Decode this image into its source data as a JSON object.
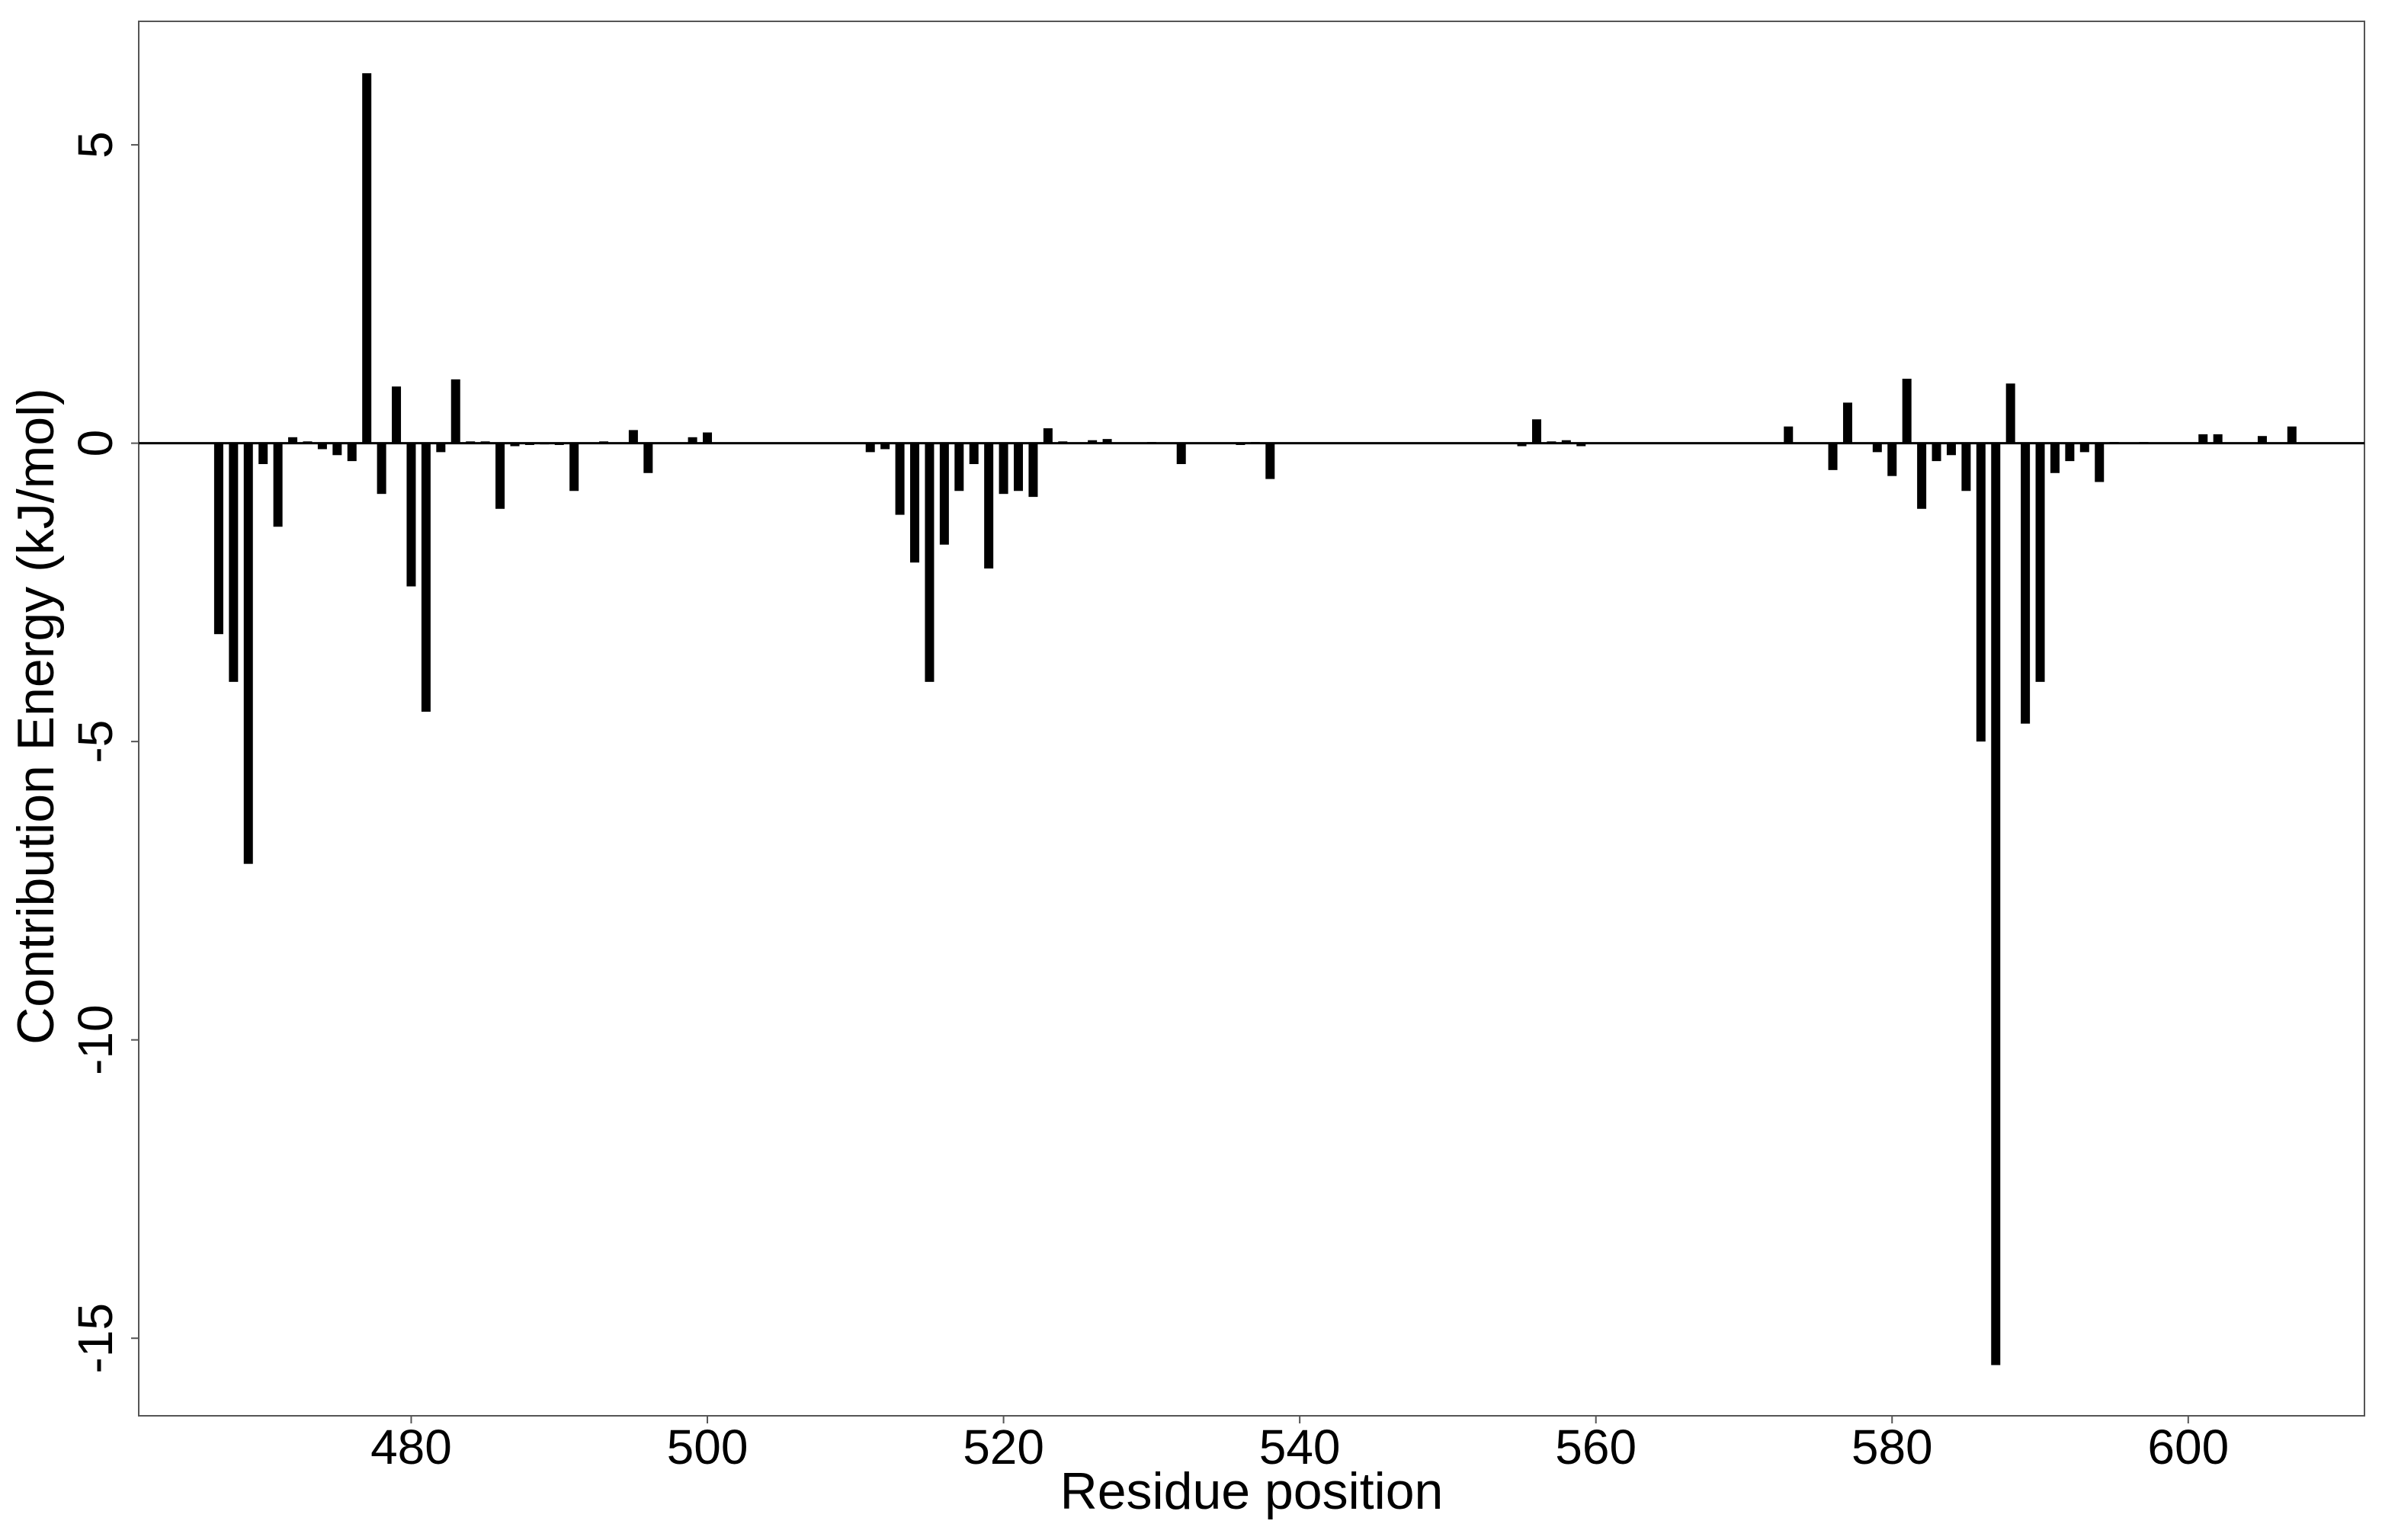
{
  "chart_data": {
    "type": "bar",
    "x_label": "Residue position",
    "y_label": "Contribution Energy (kJ/mol)",
    "color": "#000000",
    "x": [
      467,
      468,
      469,
      470,
      471,
      472,
      473,
      474,
      475,
      476,
      477,
      478,
      479,
      480,
      481,
      482,
      483,
      484,
      485,
      486,
      487,
      488,
      489,
      490,
      491,
      493,
      495,
      496,
      499,
      500,
      511,
      512,
      513,
      514,
      515,
      516,
      517,
      518,
      519,
      520,
      521,
      522,
      523,
      524,
      526,
      527,
      530,
      532,
      536,
      537,
      538,
      555,
      556,
      557,
      558,
      559,
      573,
      576,
      577,
      579,
      580,
      581,
      582,
      583,
      584,
      585,
      586,
      587,
      588,
      589,
      590,
      591,
      592,
      593,
      594,
      595,
      597,
      601,
      602,
      605,
      607
    ],
    "values": [
      -3.2,
      -4.0,
      -7.05,
      -0.35,
      -1.4,
      0.1,
      0.03,
      -0.1,
      -0.2,
      -0.3,
      6.2,
      -0.85,
      0.95,
      -2.4,
      -4.5,
      -0.15,
      1.07,
      0.03,
      0.03,
      -1.1,
      -0.05,
      -0.03,
      -0.02,
      -0.03,
      -0.8,
      0.03,
      0.22,
      -0.5,
      0.1,
      0.18,
      -0.15,
      -0.1,
      -1.2,
      -2.0,
      -4.0,
      -1.7,
      -0.8,
      -0.35,
      -2.1,
      -0.85,
      -0.8,
      -0.9,
      0.25,
      0.03,
      0.05,
      0.07,
      0.02,
      -0.35,
      -0.03,
      0.02,
      -0.6,
      -0.05,
      0.4,
      0.03,
      0.05,
      -0.05,
      0.28,
      -0.45,
      0.68,
      -0.15,
      -0.55,
      1.08,
      -1.1,
      -0.3,
      -0.2,
      -0.8,
      -5.0,
      -15.45,
      1.0,
      -4.7,
      -4.0,
      -0.5,
      -0.3,
      -0.15,
      -0.65,
      0.02,
      0.02,
      0.15,
      0.15,
      0.12,
      0.28
    ],
    "xlim": [
      461.6,
      611.9
    ],
    "ylim": [
      -16.3,
      7.07
    ],
    "xticks": [
      480,
      500,
      520,
      540,
      560,
      580,
      600
    ],
    "yticks": [
      -15,
      -10,
      -5,
      0,
      5
    ]
  }
}
